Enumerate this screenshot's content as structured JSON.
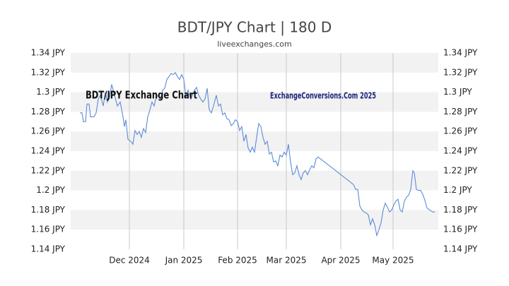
{
  "chart_data": {
    "type": "line",
    "title": "BDT/JPY Chart | 180 D",
    "subtitle": "liveexchanges.com",
    "annotations": [
      "BDT/JPY Exchange Chart",
      "ExchangeConversions.Com 2025"
    ],
    "xlim": [
      0,
      208
    ],
    "xticks": [
      {
        "value": 33.2,
        "label": "Dec 2024"
      },
      {
        "value": 64,
        "label": "Jan 2025"
      },
      {
        "value": 94.4,
        "label": "Feb 2025"
      },
      {
        "value": 122,
        "label": "Mar 2025"
      },
      {
        "value": 152.8,
        "label": "Apr 2025"
      },
      {
        "value": 182.4,
        "label": "May 2025"
      }
    ],
    "ylim": [
      1.14,
      1.34
    ],
    "yticks": [
      {
        "value": 1.14,
        "label": "1.14 JPY"
      },
      {
        "value": 1.16,
        "label": "1.16 JPY"
      },
      {
        "value": 1.18,
        "label": "1.18 JPY"
      },
      {
        "value": 1.2,
        "label": "1.2 JPY"
      },
      {
        "value": 1.22,
        "label": "1.22 JPY"
      },
      {
        "value": 1.24,
        "label": "1.24 JPY"
      },
      {
        "value": 1.26,
        "label": "1.26 JPY"
      },
      {
        "value": 1.28,
        "label": "1.28 JPY"
      },
      {
        "value": 1.3,
        "label": "1.3 JPY"
      },
      {
        "value": 1.32,
        "label": "1.32 JPY"
      },
      {
        "value": 1.34,
        "label": "1.34 JPY"
      }
    ],
    "y2lim": [
      1.14,
      1.34
    ],
    "y2ticks": [
      {
        "value": 1.14,
        "label": "1.14 JPY"
      },
      {
        "value": 1.16,
        "label": "1.16 JPY"
      },
      {
        "value": 1.18,
        "label": "1.18 JPY"
      },
      {
        "value": 1.2,
        "label": "1.2 JPY"
      },
      {
        "value": 1.22,
        "label": "1.22 JPY"
      },
      {
        "value": 1.24,
        "label": "1.24 JPY"
      },
      {
        "value": 1.26,
        "label": "1.26 JPY"
      },
      {
        "value": 1.28,
        "label": "1.28 JPY"
      },
      {
        "value": 1.3,
        "label": "1.3 JPY"
      },
      {
        "value": 1.32,
        "label": "1.32 JPY"
      },
      {
        "value": 1.34,
        "label": "1.34 JPY"
      }
    ],
    "grid": true,
    "band_color": "#f2f2f2",
    "x": [
      5.2,
      6.4,
      7.2,
      8.4,
      9.2,
      10.4,
      11.2,
      13.2,
      14.4,
      15.6,
      16.8,
      18.4,
      19.6,
      20.8,
      22,
      23.2,
      24.8,
      26.4,
      28,
      29.6,
      30.4,
      31.2,
      32.4,
      34,
      35.2,
      36.4,
      37.6,
      38.8,
      40,
      41.2,
      42.4,
      43.6,
      44.8,
      46,
      47.2,
      48.4,
      49.6,
      50.8,
      52,
      53.2,
      54.4,
      55.6,
      56.8,
      58,
      59.2,
      60.4,
      61.6,
      62.8,
      64,
      65.2,
      66.4,
      68,
      70,
      71.2,
      72.4,
      73.6,
      74.8,
      76,
      77.2,
      78.4,
      79.6,
      80.8,
      82.4,
      83.6,
      84.8,
      86,
      87.2,
      88.4,
      89.6,
      90.8,
      92,
      93.2,
      94.4,
      95.6,
      96.8,
      98,
      99.2,
      100.4,
      101.6,
      102.8,
      104,
      105.2,
      106.4,
      107.6,
      108.8,
      110,
      111.2,
      112.4,
      113.6,
      114.8,
      116,
      117.2,
      118.4,
      119.6,
      120.8,
      122,
      123.2,
      124.4,
      125.6,
      126.8,
      128,
      129.2,
      130.4,
      131.6,
      132.8,
      134,
      135.2,
      136.4,
      137.6,
      138.8,
      140,
      160,
      161.2,
      162.4,
      163.6,
      164.8,
      166,
      167.2,
      168.4,
      169.6,
      170.8,
      172,
      173.2,
      174.4,
      175.6,
      176.8,
      178,
      179.2,
      180.4,
      181.6,
      182.8,
      184,
      185.2,
      186.4,
      187.6,
      188.8,
      190,
      191.2,
      192.4,
      193.6,
      194.4,
      195.6,
      196.8,
      198,
      199.2,
      200.4,
      201.6,
      203.2,
      204.8,
      206
    ],
    "series": [
      {
        "name": "BDT/JPY",
        "color": "#5b8bd9",
        "values": [
          1.279,
          1.279,
          1.27,
          1.27,
          1.288,
          1.288,
          1.275,
          1.275,
          1.279,
          1.293,
          1.297,
          1.286,
          1.3,
          1.29,
          1.295,
          1.308,
          1.297,
          1.286,
          1.29,
          1.275,
          1.265,
          1.272,
          1.252,
          1.25,
          1.247,
          1.261,
          1.257,
          1.26,
          1.254,
          1.263,
          1.259,
          1.275,
          1.282,
          1.29,
          1.286,
          1.295,
          1.297,
          1.293,
          1.302,
          1.304,
          1.313,
          1.316,
          1.319,
          1.318,
          1.32,
          1.316,
          1.313,
          1.318,
          1.313,
          1.295,
          1.302,
          1.293,
          1.302,
          1.305,
          1.297,
          1.293,
          1.29,
          1.293,
          1.304,
          1.282,
          1.279,
          1.286,
          1.297,
          1.286,
          1.288,
          1.277,
          1.279,
          1.273,
          1.272,
          1.266,
          1.268,
          1.272,
          1.27,
          1.261,
          1.265,
          1.25,
          1.257,
          1.243,
          1.239,
          1.244,
          1.239,
          1.254,
          1.268,
          1.265,
          1.254,
          1.247,
          1.25,
          1.237,
          1.239,
          1.229,
          1.23,
          1.225,
          1.236,
          1.234,
          1.239,
          1.236,
          1.247,
          1.229,
          1.216,
          1.218,
          1.225,
          1.216,
          1.211,
          1.218,
          1.22,
          1.216,
          1.221,
          1.225,
          1.223,
          1.232,
          1.234,
          1.206,
          1.201,
          1.201,
          1.184,
          1.18,
          1.178,
          1.177,
          1.175,
          1.165,
          1.171,
          1.165,
          1.154,
          1.16,
          1.167,
          1.18,
          1.187,
          1.183,
          1.178,
          1.18,
          1.185,
          1.189,
          1.191,
          1.18,
          1.178,
          1.189,
          1.193,
          1.195,
          1.201,
          1.22,
          1.218,
          1.201,
          1.2,
          1.2,
          1.196,
          1.19,
          1.182,
          1.18,
          1.178,
          1.178
        ]
      }
    ]
  }
}
